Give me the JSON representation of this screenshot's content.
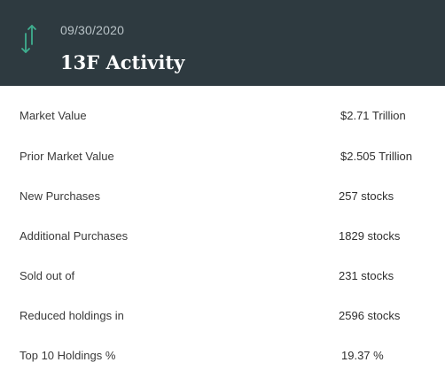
{
  "header": {
    "date": "09/30/2020",
    "title": "13F Activity",
    "icon": "vertical-arrows-icon",
    "background": "#2e3a40",
    "icon_color": "#3fae8f"
  },
  "rows": [
    {
      "label": "Market Value",
      "value": "$2.71 Trillion"
    },
    {
      "label": "Prior Market Value",
      "value": "$2.505 Trillion"
    },
    {
      "label": "New Purchases",
      "value": "257 stocks"
    },
    {
      "label": "Additional Purchases",
      "value": "1829 stocks"
    },
    {
      "label": "Sold out of",
      "value": "231 stocks"
    },
    {
      "label": "Reduced holdings in",
      "value": "2596 stocks"
    },
    {
      "label": "Top 10 Holdings %",
      "value": "19.37 %"
    }
  ]
}
